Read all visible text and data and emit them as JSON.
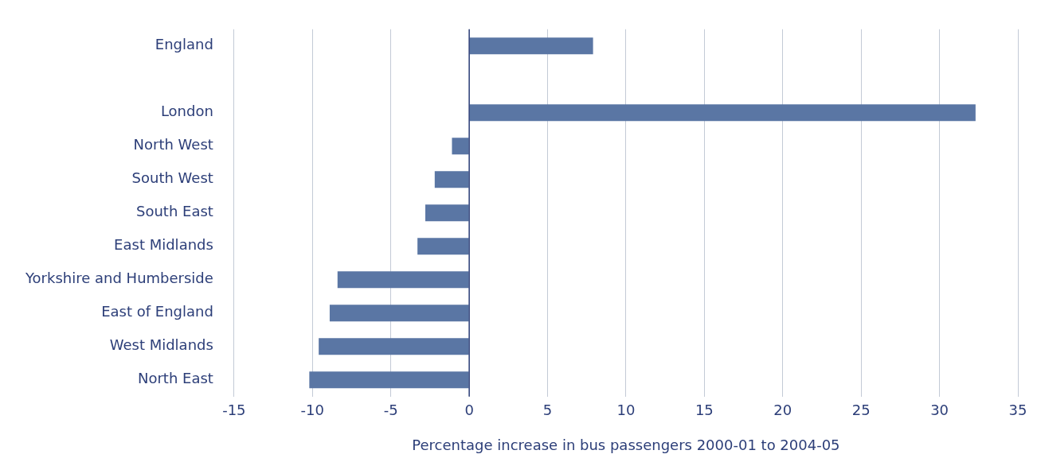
{
  "chart_data": {
    "type": "bar",
    "orientation": "horizontal",
    "xlabel": "Percentage increase in bus passengers 2000-01 to 2004-05",
    "categories": [
      "England",
      null,
      "London",
      "North West",
      "South West",
      "South East",
      "East Midlands",
      "Yorkshire and Humberside",
      "East of England",
      "West Midlands",
      "North East"
    ],
    "values": [
      7.9,
      null,
      32.3,
      -1.1,
      -2.2,
      -2.8,
      -3.3,
      -8.4,
      -8.9,
      -9.6,
      -10.2
    ],
    "color": "#5a76a4",
    "xlim": [
      -15,
      35
    ],
    "xticks": [
      -15,
      -10,
      -5,
      0,
      5,
      10,
      15,
      20,
      25,
      30,
      35
    ],
    "grid": "x",
    "legend": false,
    "ref_lines": [
      {
        "axis": "x",
        "value": 0,
        "color": "#2c3e78"
      }
    ]
  }
}
